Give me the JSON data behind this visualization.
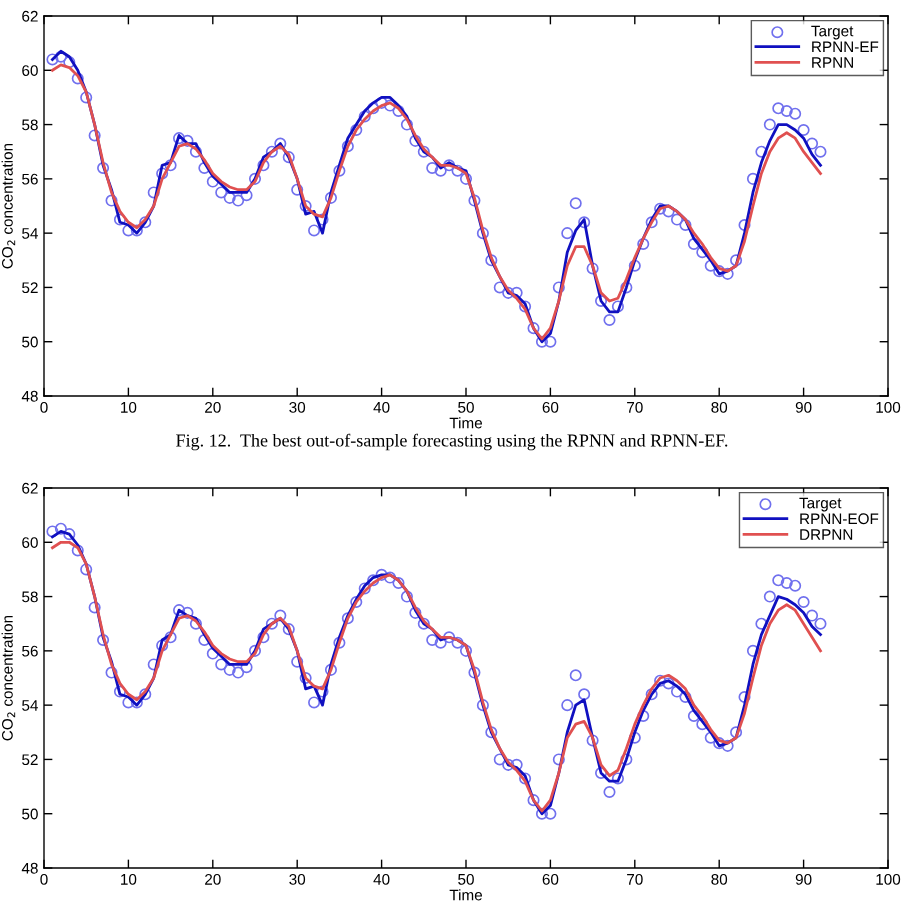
{
  "chart_data": [
    {
      "type": "line",
      "xlabel": "Time",
      "ylabel": "CO$_{2}$ concentration",
      "xlim": [
        0,
        100
      ],
      "xticks": [
        0,
        10,
        20,
        30,
        40,
        50,
        60,
        70,
        80,
        90,
        100
      ],
      "ylim": [
        48,
        62
      ],
      "yticks": [
        48,
        50,
        52,
        54,
        56,
        58,
        60,
        62
      ],
      "grid": false,
      "legend": "top right",
      "annotations": [
        "Fig. 12.  The best out-of-sample forecasting using the RPNN and RPNN-EF."
      ],
      "x": [
        1,
        2,
        3,
        4,
        5,
        6,
        7,
        8,
        9,
        10,
        11,
        12,
        13,
        14,
        15,
        16,
        17,
        18,
        19,
        20,
        21,
        22,
        23,
        24,
        25,
        26,
        27,
        28,
        29,
        30,
        31,
        32,
        33,
        34,
        35,
        36,
        37,
        38,
        39,
        40,
        41,
        42,
        43,
        44,
        45,
        46,
        47,
        48,
        49,
        50,
        51,
        52,
        53,
        54,
        55,
        56,
        57,
        58,
        59,
        60,
        61,
        62,
        63,
        64,
        65,
        66,
        67,
        68,
        69,
        70,
        71,
        72,
        73,
        74,
        75,
        76,
        77,
        78,
        79,
        80,
        81,
        82,
        83,
        84,
        85,
        86,
        87,
        88,
        89,
        90,
        91,
        92
      ],
      "series": [
        {
          "name": "Target",
          "type": "scatter",
          "marker": "circle",
          "color": "#7070ee",
          "values": [
            60.4,
            60.5,
            60.3,
            59.7,
            59.0,
            57.6,
            56.4,
            55.2,
            54.5,
            54.1,
            54.1,
            54.4,
            55.5,
            56.2,
            56.5,
            57.5,
            57.4,
            57.0,
            56.4,
            55.9,
            55.5,
            55.3,
            55.2,
            55.4,
            56.0,
            56.5,
            57.0,
            57.3,
            56.8,
            55.6,
            55.0,
            54.1,
            54.5,
            55.3,
            56.3,
            57.2,
            57.8,
            58.3,
            58.6,
            58.8,
            58.7,
            58.5,
            58.0,
            57.4,
            57.0,
            56.4,
            56.3,
            56.5,
            56.3,
            56.0,
            55.2,
            54.0,
            53.0,
            52.0,
            51.8,
            51.8,
            51.3,
            50.5,
            50.0,
            50.0,
            52.0,
            54.0,
            55.1,
            54.4,
            52.7,
            51.5,
            50.8,
            51.3,
            52.0,
            52.8,
            53.6,
            54.4,
            54.9,
            54.8,
            54.5,
            54.3,
            53.6,
            53.3,
            52.8,
            52.6,
            52.5,
            53.0,
            54.3,
            56.0,
            57.0,
            58.0,
            58.6,
            58.5,
            58.4,
            57.8,
            57.3,
            57.0
          ]
        },
        {
          "name": "RPNN-EF",
          "color": "#1010c0",
          "values": [
            60.4,
            60.7,
            60.5,
            60.0,
            59.2,
            58.0,
            56.5,
            55.6,
            54.4,
            54.3,
            54.0,
            54.4,
            55.0,
            56.5,
            56.6,
            57.6,
            57.3,
            57.3,
            56.6,
            56.1,
            55.8,
            55.5,
            55.5,
            55.5,
            56.0,
            56.8,
            57.0,
            57.3,
            56.8,
            56.0,
            54.7,
            54.8,
            54.0,
            55.5,
            56.5,
            57.5,
            58.0,
            58.5,
            58.8,
            59.0,
            59.0,
            58.7,
            58.3,
            57.5,
            57.0,
            56.8,
            56.4,
            56.6,
            56.4,
            56.3,
            55.2,
            54.0,
            53.0,
            52.4,
            51.8,
            51.7,
            51.4,
            50.5,
            50.0,
            50.3,
            51.5,
            53.3,
            54.1,
            54.5,
            52.8,
            51.5,
            51.1,
            51.1,
            52.0,
            53.0,
            53.8,
            54.5,
            55.0,
            55.0,
            54.8,
            54.5,
            53.8,
            53.4,
            53.0,
            52.5,
            52.6,
            52.8,
            54.0,
            55.5,
            56.6,
            57.4,
            58.0,
            58.0,
            57.8,
            57.5,
            56.9,
            56.5
          ]
        },
        {
          "name": "RPNN",
          "color": "#e05050",
          "values": [
            60.0,
            60.2,
            60.1,
            59.8,
            59.2,
            58.0,
            56.6,
            55.5,
            54.8,
            54.4,
            54.2,
            54.5,
            55.0,
            56.0,
            56.6,
            57.2,
            57.3,
            57.1,
            56.7,
            56.2,
            55.9,
            55.7,
            55.6,
            55.6,
            55.9,
            56.6,
            57.0,
            57.2,
            56.9,
            56.0,
            55.0,
            54.7,
            54.6,
            55.3,
            56.3,
            57.2,
            57.8,
            58.2,
            58.5,
            58.7,
            58.8,
            58.6,
            58.2,
            57.6,
            57.1,
            56.8,
            56.5,
            56.5,
            56.4,
            56.2,
            55.3,
            54.1,
            53.1,
            52.4,
            51.9,
            51.6,
            51.2,
            50.5,
            50.1,
            50.5,
            51.5,
            52.8,
            53.5,
            53.5,
            52.8,
            51.8,
            51.5,
            51.6,
            52.3,
            53.1,
            53.8,
            54.4,
            54.9,
            55.0,
            54.8,
            54.5,
            54.0,
            53.6,
            53.1,
            52.7,
            52.6,
            52.8,
            53.7,
            55.0,
            56.2,
            57.0,
            57.5,
            57.7,
            57.5,
            57.0,
            56.6,
            56.2
          ]
        }
      ]
    },
    {
      "type": "line",
      "xlabel": "Time",
      "ylabel": "CO$_{2}$ concentration",
      "xlim": [
        0,
        100
      ],
      "xticks": [
        0,
        10,
        20,
        30,
        40,
        50,
        60,
        70,
        80,
        90,
        100
      ],
      "ylim": [
        48,
        62
      ],
      "yticks": [
        48,
        50,
        52,
        54,
        56,
        58,
        60,
        62
      ],
      "grid": false,
      "legend": "top right",
      "x": [
        1,
        2,
        3,
        4,
        5,
        6,
        7,
        8,
        9,
        10,
        11,
        12,
        13,
        14,
        15,
        16,
        17,
        18,
        19,
        20,
        21,
        22,
        23,
        24,
        25,
        26,
        27,
        28,
        29,
        30,
        31,
        32,
        33,
        34,
        35,
        36,
        37,
        38,
        39,
        40,
        41,
        42,
        43,
        44,
        45,
        46,
        47,
        48,
        49,
        50,
        51,
        52,
        53,
        54,
        55,
        56,
        57,
        58,
        59,
        60,
        61,
        62,
        63,
        64,
        65,
        66,
        67,
        68,
        69,
        70,
        71,
        72,
        73,
        74,
        75,
        76,
        77,
        78,
        79,
        80,
        81,
        82,
        83,
        84,
        85,
        86,
        87,
        88,
        89,
        90,
        91,
        92
      ],
      "series": [
        {
          "name": "Target",
          "type": "scatter",
          "marker": "circle",
          "color": "#7070ee",
          "values": [
            60.4,
            60.5,
            60.3,
            59.7,
            59.0,
            57.6,
            56.4,
            55.2,
            54.5,
            54.1,
            54.1,
            54.4,
            55.5,
            56.2,
            56.5,
            57.5,
            57.4,
            57.0,
            56.4,
            55.9,
            55.5,
            55.3,
            55.2,
            55.4,
            56.0,
            56.5,
            57.0,
            57.3,
            56.8,
            55.6,
            55.0,
            54.1,
            54.5,
            55.3,
            56.3,
            57.2,
            57.8,
            58.3,
            58.6,
            58.8,
            58.7,
            58.5,
            58.0,
            57.4,
            57.0,
            56.4,
            56.3,
            56.5,
            56.3,
            56.0,
            55.2,
            54.0,
            53.0,
            52.0,
            51.8,
            51.8,
            51.3,
            50.5,
            50.0,
            50.0,
            52.0,
            54.0,
            55.1,
            54.4,
            52.7,
            51.5,
            50.8,
            51.3,
            52.0,
            52.8,
            53.6,
            54.4,
            54.9,
            54.8,
            54.5,
            54.3,
            53.6,
            53.3,
            52.8,
            52.6,
            52.5,
            53.0,
            54.3,
            56.0,
            57.0,
            58.0,
            58.6,
            58.5,
            58.4,
            57.8,
            57.3,
            57.0
          ]
        },
        {
          "name": "RPNN-EOF",
          "color": "#1010c0",
          "values": [
            60.2,
            60.4,
            60.3,
            59.9,
            59.2,
            58.0,
            56.5,
            55.6,
            54.4,
            54.3,
            54.0,
            54.4,
            55.0,
            56.4,
            56.6,
            57.5,
            57.3,
            57.2,
            56.6,
            56.1,
            55.8,
            55.5,
            55.5,
            55.5,
            56.0,
            56.8,
            57.0,
            57.2,
            56.8,
            56.0,
            54.6,
            54.7,
            54.0,
            55.5,
            56.5,
            57.3,
            57.9,
            58.4,
            58.7,
            58.8,
            58.8,
            58.6,
            58.2,
            57.5,
            57.0,
            56.8,
            56.4,
            56.5,
            56.4,
            56.2,
            55.2,
            54.0,
            53.0,
            52.4,
            51.8,
            51.7,
            51.4,
            50.5,
            50.0,
            50.3,
            51.5,
            53.0,
            54.0,
            54.2,
            52.8,
            51.5,
            51.2,
            51.2,
            52.0,
            53.0,
            53.8,
            54.4,
            54.8,
            54.9,
            54.7,
            54.4,
            53.8,
            53.4,
            53.0,
            52.5,
            52.6,
            52.8,
            54.0,
            55.5,
            56.6,
            57.3,
            58.0,
            57.9,
            57.7,
            57.4,
            56.9,
            56.6
          ]
        },
        {
          "name": "DRPNN",
          "color": "#e05050",
          "values": [
            59.8,
            60.0,
            60.0,
            59.8,
            59.2,
            58.0,
            56.6,
            55.5,
            54.8,
            54.4,
            54.2,
            54.5,
            55.0,
            56.0,
            56.6,
            57.2,
            57.3,
            57.1,
            56.7,
            56.2,
            55.9,
            55.7,
            55.6,
            55.6,
            55.9,
            56.6,
            57.0,
            57.2,
            56.9,
            56.0,
            55.0,
            54.7,
            54.6,
            55.3,
            56.3,
            57.2,
            57.8,
            58.2,
            58.5,
            58.7,
            58.8,
            58.6,
            58.2,
            57.6,
            57.1,
            56.8,
            56.5,
            56.5,
            56.4,
            56.2,
            55.3,
            54.1,
            53.1,
            52.4,
            51.9,
            51.6,
            51.2,
            50.5,
            50.1,
            50.5,
            51.5,
            52.8,
            53.3,
            53.4,
            52.8,
            51.8,
            51.4,
            51.6,
            52.4,
            53.3,
            54.0,
            54.6,
            55.0,
            55.1,
            54.9,
            54.6,
            54.0,
            53.6,
            53.1,
            52.7,
            52.6,
            52.8,
            53.7,
            55.0,
            56.2,
            57.0,
            57.5,
            57.7,
            57.5,
            57.0,
            56.5,
            56.0
          ]
        }
      ]
    }
  ]
}
